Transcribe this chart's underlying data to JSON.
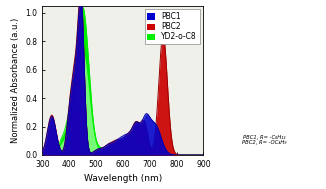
{
  "xlabel": "Wavelength (nm)",
  "ylabel": "Normalized Absorbance (a.u.)",
  "xlim": [
    300,
    900
  ],
  "ylim": [
    0.0,
    1.05
  ],
  "yticks": [
    0.0,
    0.2,
    0.4,
    0.6,
    0.8,
    1.0
  ],
  "xticks": [
    300,
    400,
    500,
    600,
    700,
    800,
    900
  ],
  "legend_labels": [
    "PBC1",
    "PBC2",
    "YD2-o-C8"
  ],
  "color_pbc1": "#0000cc",
  "color_pbc2": "#cc0000",
  "color_yd2_fill": "#00ee00",
  "color_yd2_light": "#aaffaa",
  "bg_color": "#f0f0ea",
  "figsize": [
    3.26,
    1.89
  ],
  "dpi": 100,
  "legend_fontsize": 5.5,
  "axis_fontsize": 6.5,
  "tick_fontsize": 5.5
}
